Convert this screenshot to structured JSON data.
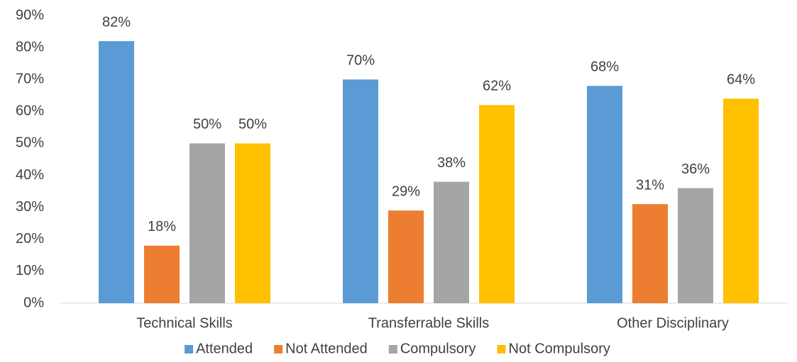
{
  "chart_data": {
    "type": "bar",
    "categories": [
      "Technical Skills",
      "Transferrable Skills",
      "Other Disciplinary"
    ],
    "series": [
      {
        "name": "Attended",
        "color": "#5b9bd5",
        "values": [
          82,
          70,
          68
        ],
        "value_labels": [
          "82%",
          "70%",
          "68%"
        ]
      },
      {
        "name": "Not Attended",
        "color": "#ed7d31",
        "values": [
          18,
          29,
          31
        ],
        "value_labels": [
          "18%",
          "29%",
          "31%"
        ]
      },
      {
        "name": "Compulsory",
        "color": "#a5a5a5",
        "values": [
          50,
          38,
          36
        ],
        "value_labels": [
          "50%",
          "38%",
          "36%"
        ]
      },
      {
        "name": "Not Compulsory",
        "color": "#ffc000",
        "values": [
          50,
          62,
          64
        ],
        "value_labels": [
          "50%",
          "62%",
          "64%"
        ]
      }
    ],
    "ylim": [
      0,
      90
    ],
    "yticks": [
      {
        "value": 0,
        "label": "0%"
      },
      {
        "value": 10,
        "label": "10%"
      },
      {
        "value": 20,
        "label": "20%"
      },
      {
        "value": 30,
        "label": "30%"
      },
      {
        "value": 40,
        "label": "40%"
      },
      {
        "value": 50,
        "label": "50%"
      },
      {
        "value": 60,
        "label": "60%"
      },
      {
        "value": 70,
        "label": "70%"
      },
      {
        "value": 80,
        "label": "80%"
      },
      {
        "value": 90,
        "label": "90%"
      }
    ],
    "grid": false,
    "legend": "bottom"
  }
}
